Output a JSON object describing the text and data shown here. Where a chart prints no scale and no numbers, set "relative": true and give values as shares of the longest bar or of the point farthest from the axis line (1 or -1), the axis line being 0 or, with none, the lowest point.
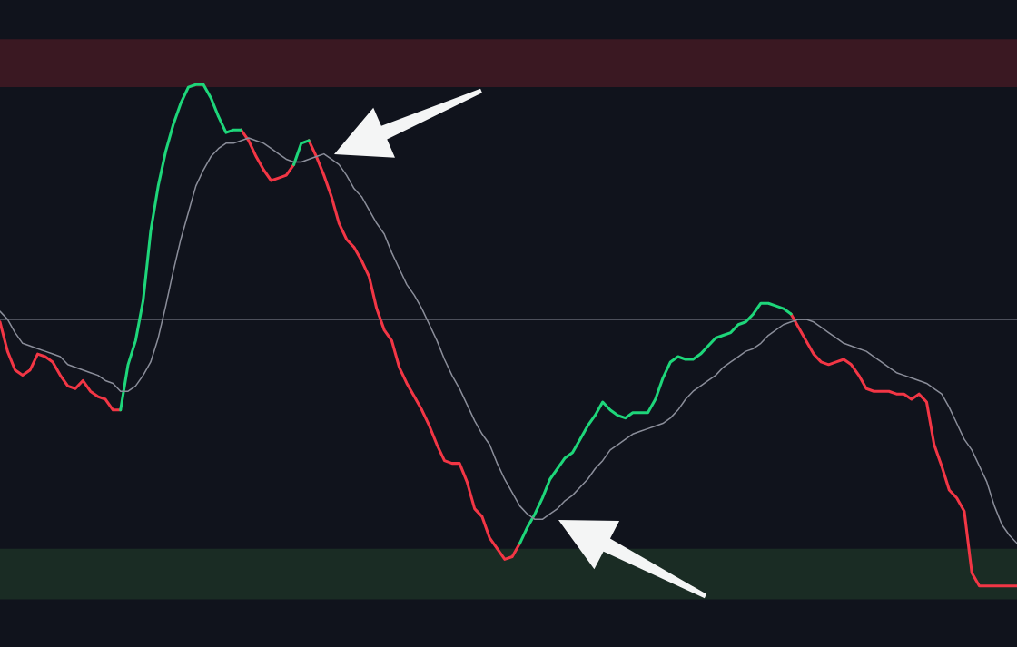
{
  "chart_data": {
    "type": "line",
    "relative": true,
    "categories": [
      null,
      null,
      null,
      null,
      null,
      null,
      null,
      null,
      null,
      null,
      null,
      null,
      null,
      null,
      null,
      null,
      null,
      null,
      null,
      null,
      null,
      null,
      null,
      null,
      null,
      null,
      null,
      null,
      null,
      null,
      null,
      null,
      null,
      null,
      null,
      null,
      null,
      null,
      null,
      null,
      null,
      null,
      null,
      null,
      null,
      null,
      null,
      null,
      null,
      null,
      null,
      null,
      null,
      null,
      null,
      null,
      null,
      null,
      null,
      null,
      null,
      null,
      null,
      null,
      null,
      null,
      null,
      null,
      null,
      null,
      null,
      null,
      null,
      null,
      null,
      null,
      null,
      null,
      null,
      null,
      null,
      null,
      null,
      null,
      null,
      null,
      null,
      null,
      null,
      null,
      null,
      null,
      null,
      null,
      null,
      null,
      null,
      null,
      null,
      null,
      null,
      null,
      null,
      null,
      null,
      null,
      null,
      null,
      null,
      null,
      null,
      null,
      null,
      null,
      null,
      null,
      null,
      null,
      null,
      null,
      null,
      null,
      null,
      null,
      null,
      null,
      null,
      null,
      null,
      null,
      null,
      null,
      null,
      null,
      null,
      null
    ],
    "series": [
      {
        "color": "#f23645",
        "values": [
          -0.01,
          -0.12,
          -0.19,
          -0.21,
          -0.19,
          -0.13,
          -0.14,
          -0.16,
          -0.21,
          -0.25,
          -0.26,
          -0.23,
          -0.27,
          -0.29,
          -0.3,
          -0.34,
          -0.34,
          null,
          null,
          null,
          null,
          null,
          null,
          null,
          null,
          null,
          null,
          null,
          null,
          null,
          null,
          null,
          0.71,
          0.67,
          0.61,
          0.56,
          0.52,
          0.53,
          0.54,
          0.58,
          null,
          0.67,
          0.61,
          0.54,
          0.46,
          0.36,
          0.3,
          0.27,
          0.22,
          0.16,
          0.04,
          -0.04,
          -0.08,
          -0.18,
          -0.24,
          -0.29,
          -0.34,
          -0.4,
          -0.47,
          -0.53,
          -0.54,
          -0.54,
          -0.61,
          -0.71,
          -0.74,
          -0.82,
          -0.86,
          -0.9,
          -0.89,
          -0.84,
          null,
          null,
          null,
          null,
          null,
          null,
          null,
          null,
          null,
          null,
          null,
          null,
          null,
          null,
          null,
          null,
          null,
          null,
          null,
          null,
          null,
          null,
          null,
          null,
          null,
          null,
          null,
          null,
          null,
          null,
          null,
          null,
          null,
          null,
          null,
          0.02,
          -0.03,
          -0.08,
          -0.13,
          -0.16,
          -0.17,
          -0.16,
          -0.15,
          -0.17,
          -0.21,
          -0.26,
          -0.27,
          -0.27,
          -0.27,
          -0.28,
          -0.28,
          -0.3,
          -0.28,
          -0.31,
          -0.47,
          -0.55,
          -0.64,
          -0.67,
          -0.72,
          -0.95,
          -1.0,
          -1,
          -1,
          -1,
          -1,
          -1
        ]
      },
      {
        "color": "#1ed67a",
        "values": [
          null,
          null,
          null,
          null,
          null,
          null,
          null,
          null,
          null,
          null,
          null,
          null,
          null,
          null,
          null,
          null,
          -0.34,
          -0.17,
          -0.08,
          0.07,
          0.33,
          0.5,
          0.63,
          0.73,
          0.81,
          0.87,
          0.88,
          0.88,
          0.83,
          0.76,
          0.7,
          0.71,
          0.71,
          null,
          null,
          null,
          null,
          null,
          null,
          0.58,
          0.66,
          0.67,
          null,
          null,
          null,
          null,
          null,
          null,
          null,
          null,
          null,
          null,
          null,
          null,
          null,
          null,
          null,
          null,
          null,
          null,
          null,
          null,
          null,
          null,
          null,
          null,
          null,
          null,
          null,
          -0.84,
          -0.78,
          -0.73,
          -0.67,
          -0.6,
          -0.56,
          -0.52,
          -0.5,
          -0.45,
          -0.4,
          -0.36,
          -0.31,
          -0.34,
          -0.36,
          -0.37,
          -0.35,
          -0.35,
          -0.35,
          -0.3,
          -0.22,
          -0.16,
          -0.14,
          -0.15,
          -0.15,
          -0.13,
          -0.1,
          -0.07,
          -0.06,
          -0.05,
          -0.02,
          -0.01,
          0.02,
          0.06,
          0.06,
          0.05,
          0.04,
          0.02,
          null,
          null,
          null,
          null,
          null,
          null,
          null,
          null,
          null,
          null,
          null,
          null,
          null,
          null,
          null,
          null,
          null,
          null,
          null,
          null,
          null,
          null,
          null,
          null,
          null,
          null,
          null,
          null,
          null,
          null
        ]
      },
      {
        "color": "#8a8d99",
        "values": [
          0.03,
          0.0,
          -0.05,
          -0.09,
          -0.1,
          -0.11,
          -0.12,
          -0.13,
          -0.14,
          -0.17,
          -0.18,
          -0.19,
          -0.2,
          -0.21,
          -0.23,
          -0.24,
          -0.27,
          -0.27,
          -0.25,
          -0.21,
          -0.16,
          -0.07,
          0.05,
          0.18,
          0.3,
          0.4,
          0.5,
          0.56,
          0.61,
          0.64,
          0.66,
          0.66,
          0.67,
          0.68,
          0.67,
          0.66,
          0.64,
          0.62,
          0.6,
          0.59,
          0.59,
          0.6,
          0.61,
          0.62,
          0.6,
          0.58,
          0.54,
          0.49,
          0.46,
          0.41,
          0.36,
          0.32,
          0.25,
          0.19,
          0.13,
          0.09,
          0.04,
          -0.02,
          -0.08,
          -0.15,
          -0.21,
          -0.26,
          -0.32,
          -0.38,
          -0.43,
          -0.47,
          -0.54,
          -0.6,
          -0.65,
          -0.7,
          -0.73,
          -0.75,
          -0.75,
          -0.73,
          -0.71,
          -0.68,
          -0.66,
          -0.63,
          -0.6,
          -0.56,
          -0.53,
          -0.49,
          -0.47,
          -0.45,
          -0.43,
          -0.42,
          -0.41,
          -0.4,
          -0.39,
          -0.37,
          -0.34,
          -0.3,
          -0.27,
          -0.25,
          -0.23,
          -0.21,
          -0.18,
          -0.16,
          -0.14,
          -0.12,
          -0.11,
          -0.09,
          -0.06,
          -0.04,
          -0.02,
          -0.01,
          0.0,
          0.0,
          -0.01,
          -0.03,
          -0.05,
          -0.07,
          -0.09,
          -0.1,
          -0.11,
          -0.12,
          -0.14,
          -0.16,
          -0.18,
          -0.2,
          -0.21,
          -0.22,
          -0.23,
          -0.24,
          -0.26,
          -0.28,
          -0.33,
          -0.39,
          -0.45,
          -0.49,
          -0.55,
          -0.61,
          -0.7,
          -0.77,
          -0.81,
          -0.84
        ]
      }
    ],
    "ref_lines": [
      {
        "axis": "y",
        "value": 0,
        "color": "#8a8d99"
      }
    ],
    "bands": [
      {
        "axis": "y",
        "from": 0.87,
        "to": 1.05,
        "color": "#3a1822"
      },
      {
        "axis": "y",
        "from": -1.05,
        "to": -0.86,
        "color": "#1a2c24"
      }
    ]
  }
}
